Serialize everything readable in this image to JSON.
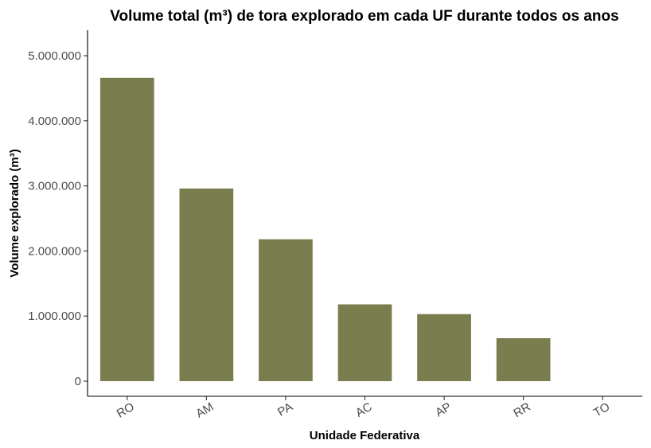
{
  "chart_data": {
    "type": "bar",
    "title": "Volume total (m³) de tora explorado em cada UF durante todos os anos",
    "xlabel": "Unidade Federativa",
    "ylabel": "Volume explorado (m³)",
    "categories": [
      "RO",
      "AM",
      "PA",
      "AC",
      "AP",
      "RR",
      "TO"
    ],
    "values": [
      4660000,
      2960000,
      2180000,
      1180000,
      1030000,
      660000,
      0
    ],
    "ylim": [
      0,
      5350000
    ],
    "yticks": [
      0,
      1000000,
      2000000,
      3000000,
      4000000,
      5000000
    ],
    "ytick_labels": [
      "0",
      "1.000.000",
      "2.000.000",
      "3.000.000",
      "4.000.000",
      "5.000.000"
    ],
    "bar_color": "#7a7e4e",
    "grid": false,
    "legend": "none"
  }
}
